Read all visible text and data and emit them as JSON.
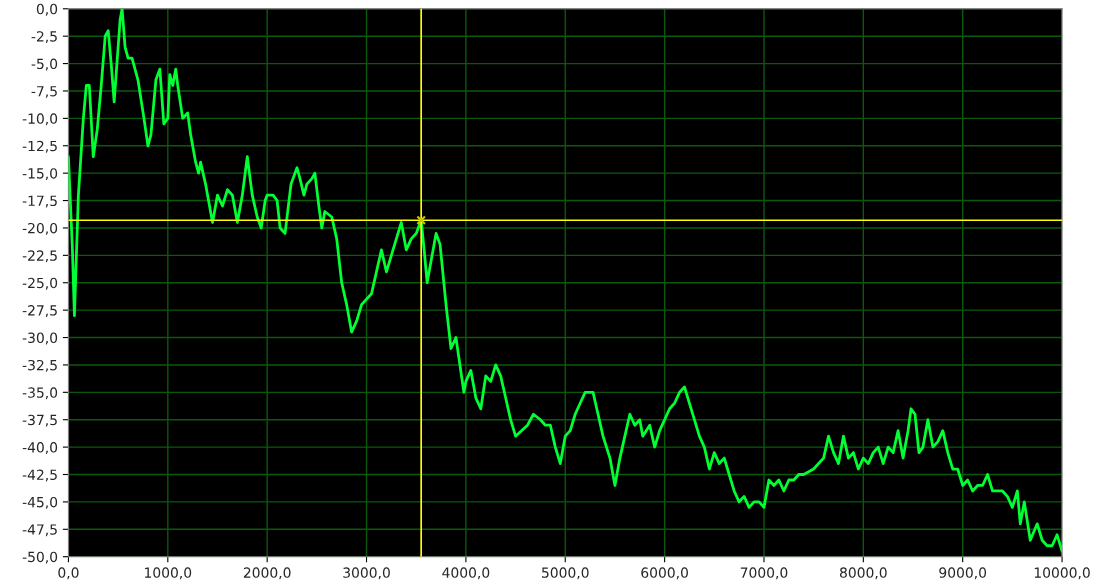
{
  "chart_data": {
    "type": "line",
    "xlim": [
      0,
      10000
    ],
    "xticks": [
      {
        "value": 0,
        "label": "0,0"
      },
      {
        "value": 1000,
        "label": "1000,0"
      },
      {
        "value": 2000,
        "label": "2000,0"
      },
      {
        "value": 3000,
        "label": "3000,0"
      },
      {
        "value": 4000,
        "label": "4000,0"
      },
      {
        "value": 5000,
        "label": "5000,0"
      },
      {
        "value": 6000,
        "label": "6000,0"
      },
      {
        "value": 7000,
        "label": "7000,0"
      },
      {
        "value": 8000,
        "label": "8000,0"
      },
      {
        "value": 9000,
        "label": "9000,0"
      },
      {
        "value": 10000,
        "label": "10000,0"
      }
    ],
    "ylim": [
      -50,
      0
    ],
    "yticks": [
      {
        "value": 0,
        "label": "0,0"
      },
      {
        "value": -2.5,
        "label": "-2,5"
      },
      {
        "value": -5,
        "label": "-5,0"
      },
      {
        "value": -7.5,
        "label": "-7,5"
      },
      {
        "value": -10,
        "label": "-10,0"
      },
      {
        "value": -12.5,
        "label": "-12,5"
      },
      {
        "value": -15,
        "label": "-15,0"
      },
      {
        "value": -17.5,
        "label": "-17,5"
      },
      {
        "value": -20,
        "label": "-20,0"
      },
      {
        "value": -22.5,
        "label": "-22,5"
      },
      {
        "value": -25,
        "label": "-25,0"
      },
      {
        "value": -27.5,
        "label": "-27,5"
      },
      {
        "value": -30,
        "label": "-30,0"
      },
      {
        "value": -32.5,
        "label": "-32,5"
      },
      {
        "value": -35,
        "label": "-35,0"
      },
      {
        "value": -37.5,
        "label": "-37,5"
      },
      {
        "value": -40,
        "label": "-40,0"
      },
      {
        "value": -42.5,
        "label": "-42,5"
      },
      {
        "value": -45,
        "label": "-45,0"
      },
      {
        "value": -47.5,
        "label": "-47,5"
      },
      {
        "value": -50,
        "label": "-50,0"
      }
    ],
    "grid": true,
    "legend": false,
    "ref_lines": [
      {
        "axis": "x",
        "value": 3550,
        "color": "#ffff00"
      },
      {
        "axis": "y",
        "value": -19.3,
        "color": "#ffff00"
      }
    ],
    "series": [
      {
        "color": "#00ff33",
        "marker": "none",
        "x": [
          0,
          40,
          60,
          100,
          150,
          180,
          210,
          250,
          290,
          330,
          370,
          400,
          430,
          460,
          520,
          540,
          570,
          600,
          640,
          700,
          760,
          800,
          830,
          880,
          920,
          960,
          1000,
          1020,
          1050,
          1080,
          1100,
          1150,
          1200,
          1230,
          1280,
          1310,
          1330,
          1380,
          1450,
          1500,
          1550,
          1600,
          1650,
          1700,
          1750,
          1800,
          1850,
          1900,
          1940,
          1980,
          2000,
          2060,
          2100,
          2130,
          2180,
          2240,
          2300,
          2330,
          2370,
          2400,
          2450,
          2480,
          2520,
          2550,
          2580,
          2650,
          2700,
          2750,
          2800,
          2850,
          2900,
          2950,
          3000,
          3050,
          3100,
          3150,
          3200,
          3250,
          3300,
          3350,
          3400,
          3450,
          3500,
          3550,
          3580,
          3610,
          3650,
          3700,
          3740,
          3800,
          3850,
          3900,
          3940,
          3980,
          4000,
          4050,
          4100,
          4150,
          4200,
          4250,
          4300,
          4350,
          4400,
          4450,
          4500,
          4560,
          4620,
          4680,
          4750,
          4800,
          4850,
          4900,
          4950,
          5000,
          5050,
          5100,
          5150,
          5200,
          5280,
          5330,
          5380,
          5450,
          5500,
          5550,
          5600,
          5650,
          5700,
          5750,
          5780,
          5850,
          5900,
          5950,
          6000,
          6050,
          6100,
          6150,
          6200,
          6250,
          6300,
          6350,
          6400,
          6450,
          6500,
          6550,
          6600,
          6650,
          6700,
          6750,
          6800,
          6850,
          6900,
          6950,
          7000,
          7050,
          7100,
          7150,
          7200,
          7250,
          7300,
          7350,
          7400,
          7500,
          7550,
          7600,
          7650,
          7700,
          7750,
          7800,
          7850,
          7900,
          7950,
          8000,
          8050,
          8100,
          8150,
          8200,
          8250,
          8300,
          8350,
          8400,
          8450,
          8480,
          8520,
          8560,
          8600,
          8650,
          8700,
          8750,
          8800,
          8850,
          8900,
          8950,
          9000,
          9050,
          9100,
          9150,
          9200,
          9250,
          9300,
          9350,
          9400,
          9450,
          9500,
          9550,
          9580,
          9620,
          9680,
          9750,
          9800,
          9850,
          9900,
          9950,
          10000
        ],
        "values": [
          -13.5,
          -22,
          -28,
          -17,
          -10,
          -7,
          -7,
          -13.5,
          -11,
          -7,
          -2.5,
          -2,
          -5,
          -8.5,
          -1,
          0,
          -3.5,
          -4.5,
          -4.5,
          -6.5,
          -10,
          -12.5,
          -11.5,
          -6.5,
          -5.5,
          -10.5,
          -10,
          -6,
          -7,
          -5.5,
          -7,
          -10,
          -9.5,
          -11.5,
          -14,
          -15,
          -14,
          -16,
          -19.5,
          -17,
          -18,
          -16.5,
          -17,
          -19.5,
          -17,
          -13.5,
          -17,
          -19,
          -20,
          -17.5,
          -17,
          -17,
          -17.5,
          -20,
          -20.5,
          -16,
          -14.5,
          -15.5,
          -17,
          -16,
          -15.5,
          -15,
          -18,
          -20,
          -18.5,
          -19,
          -21,
          -25,
          -27,
          -29.5,
          -28.5,
          -27,
          -26.5,
          -26,
          -24,
          -22,
          -24,
          -22.5,
          -21,
          -19.5,
          -22,
          -21,
          -20.5,
          -19.3,
          -22,
          -25,
          -23,
          -20.5,
          -21.5,
          -27,
          -31,
          -30,
          -32.5,
          -35,
          -34,
          -33,
          -35.5,
          -36.5,
          -33.5,
          -34,
          -32.5,
          -33.5,
          -35.5,
          -37.5,
          -39,
          -38.5,
          -38,
          -37,
          -37.5,
          -38,
          -38,
          -40,
          -41.5,
          -39,
          -38.5,
          -37,
          -36,
          -35,
          -35,
          -37,
          -39,
          -41,
          -43.5,
          -41,
          -39,
          -37,
          -38,
          -37.5,
          -39,
          -38,
          -40,
          -38.5,
          -37.5,
          -36.5,
          -36,
          -35,
          -34.5,
          -36,
          -37.5,
          -39,
          -40,
          -42,
          -40.5,
          -41.5,
          -41,
          -42.5,
          -44,
          -45,
          -44.5,
          -45.5,
          -45,
          -45,
          -45.5,
          -43,
          -43.5,
          -43,
          -44,
          -43,
          -43,
          -42.5,
          -42.5,
          -42,
          -41.5,
          -41,
          -39,
          -40.5,
          -41.5,
          -39,
          -41,
          -40.5,
          -42,
          -41,
          -41.5,
          -40.5,
          -40,
          -41.5,
          -40,
          -40.5,
          -38.5,
          -41,
          -38.5,
          -36.5,
          -37,
          -40.5,
          -40,
          -37.5,
          -40,
          -39.5,
          -38.5,
          -40.5,
          -42,
          -42,
          -43.5,
          -43,
          -44,
          -43.5,
          -43.5,
          -42.5,
          -44,
          -44,
          -44,
          -44.5,
          -45.5,
          -44,
          -47,
          -45,
          -48.5,
          -47,
          -48.5,
          -49,
          -49,
          -48,
          -49.5
        ]
      },
      {
        "type": "scatter",
        "color": "#c8c800",
        "marker": "cross",
        "x": [
          3550
        ],
        "values": [
          -19.3
        ]
      }
    ]
  }
}
